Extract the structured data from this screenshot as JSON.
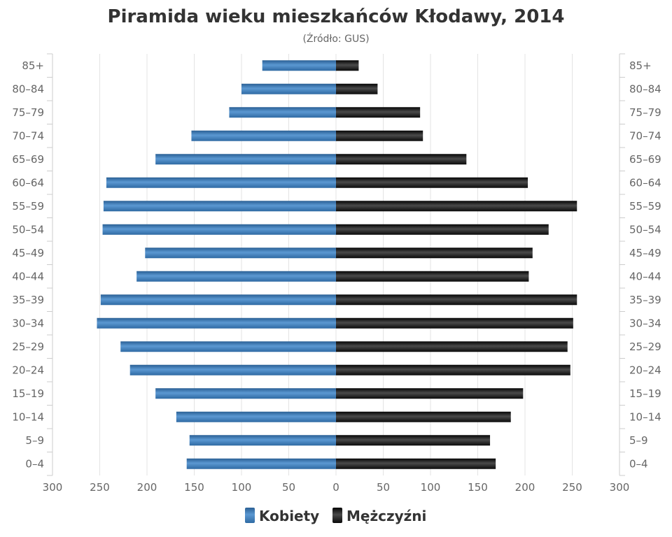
{
  "chart_data": {
    "type": "bar",
    "orientation": "horizontal-pyramid",
    "title": "Piramida wieku mieszkańców Kłodawy, 2014",
    "subtitle": "(Źródło: GUS)",
    "categories": [
      "0–4",
      "5–9",
      "10–14",
      "15–19",
      "20–24",
      "25–29",
      "30–34",
      "35–39",
      "40–44",
      "45–49",
      "50–54",
      "55–59",
      "60–64",
      "65–69",
      "70–74",
      "75–79",
      "80–84",
      "85+"
    ],
    "series": [
      {
        "name": "Kobiety",
        "side": "left",
        "color": "#3d7ab8",
        "values": [
          158,
          155,
          169,
          191,
          218,
          228,
          253,
          249,
          211,
          202,
          247,
          246,
          243,
          191,
          153,
          113,
          100,
          78
        ]
      },
      {
        "name": "Mężczyźni",
        "side": "right",
        "color": "#1a1a1a",
        "values": [
          169,
          163,
          185,
          198,
          248,
          245,
          251,
          255,
          204,
          208,
          225,
          255,
          203,
          138,
          92,
          89,
          44,
          24
        ]
      }
    ],
    "xlim": [
      0,
      300
    ],
    "xticks": [
      300,
      250,
      200,
      150,
      100,
      50,
      0,
      50,
      100,
      150,
      200,
      250,
      300
    ],
    "grid": true,
    "legend": "bottom-center"
  }
}
